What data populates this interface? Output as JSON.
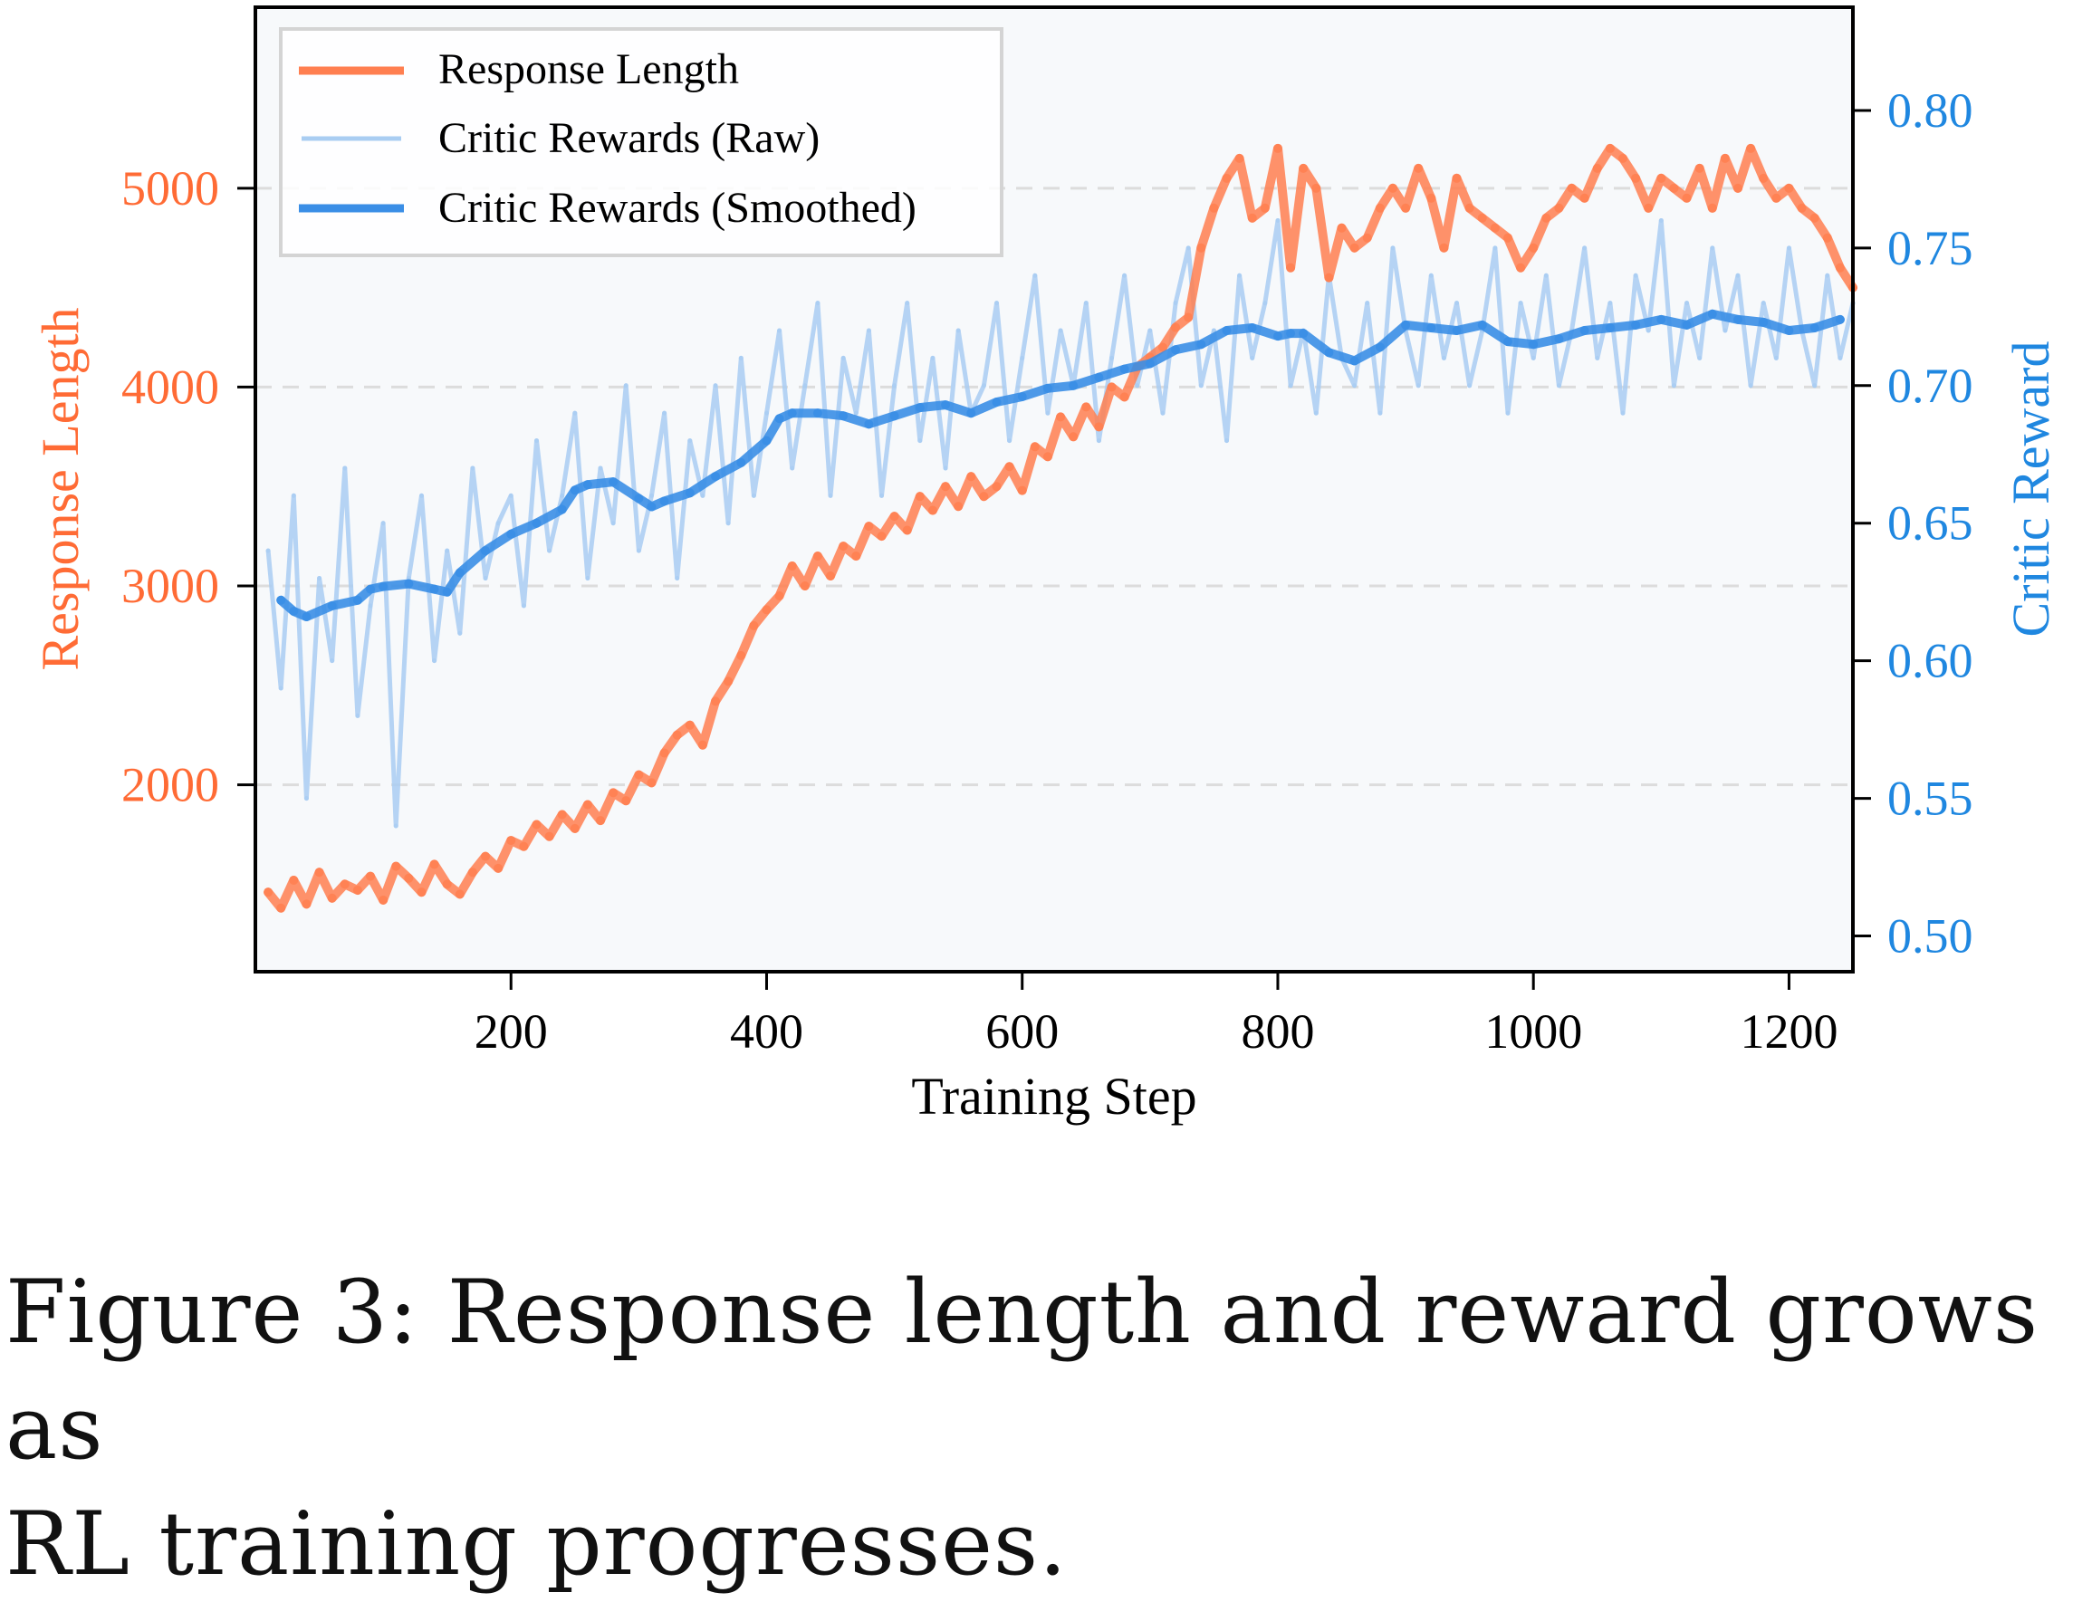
{
  "chart_data": {
    "type": "line",
    "title": "",
    "xlabel": "Training Step",
    "ylabel_left": "Response Length",
    "ylabel_right": "Critic Reward",
    "xlim": [
      0,
      1250
    ],
    "ylim_left": [
      1060,
      5910
    ],
    "ylim_right": [
      0.487,
      0.8375
    ],
    "xticks": [
      200,
      400,
      600,
      800,
      1000,
      1200
    ],
    "xtick_labels": [
      "200",
      "400",
      "600",
      "800",
      "1000",
      "1200"
    ],
    "yticks_left": [
      2000,
      3000,
      4000,
      5000
    ],
    "ytick_labels_left": [
      "2000",
      "3000",
      "4000",
      "5000"
    ],
    "yticks_right": [
      0.5,
      0.55,
      0.6,
      0.65,
      0.7,
      0.75,
      0.8
    ],
    "ytick_labels_right": [
      "0.50",
      "0.55",
      "0.60",
      "0.65",
      "0.70",
      "0.75",
      "0.80"
    ],
    "grid": "horizontal dashed",
    "legend_position": "top-left",
    "colors": {
      "response_length": "#ff7f50",
      "left_axis": "#ff6b35",
      "raw": "#a9cdf2",
      "smoothed": "#3a8ee6",
      "right_axis": "#1f87e0",
      "background": "#f7f9fb"
    },
    "series": [
      {
        "name": "Response Length",
        "axis": "left",
        "x": [
          10,
          20,
          30,
          40,
          50,
          60,
          70,
          80,
          90,
          100,
          110,
          120,
          130,
          140,
          150,
          160,
          170,
          180,
          190,
          200,
          210,
          220,
          230,
          240,
          250,
          260,
          270,
          280,
          290,
          300,
          310,
          320,
          330,
          340,
          350,
          360,
          370,
          380,
          390,
          400,
          410,
          420,
          430,
          440,
          450,
          460,
          470,
          480,
          490,
          500,
          510,
          520,
          530,
          540,
          550,
          560,
          570,
          580,
          590,
          600,
          610,
          620,
          630,
          640,
          650,
          660,
          670,
          680,
          690,
          700,
          710,
          720,
          730,
          740,
          750,
          760,
          770,
          780,
          790,
          800,
          810,
          820,
          830,
          840,
          850,
          860,
          870,
          880,
          890,
          900,
          910,
          920,
          930,
          940,
          950,
          960,
          970,
          980,
          990,
          1000,
          1010,
          1020,
          1030,
          1040,
          1050,
          1060,
          1070,
          1080,
          1090,
          1100,
          1110,
          1120,
          1130,
          1140,
          1150,
          1160,
          1170,
          1180,
          1190,
          1200,
          1210,
          1220,
          1230,
          1240,
          1250
        ],
        "values": [
          1460,
          1380,
          1520,
          1400,
          1560,
          1430,
          1500,
          1470,
          1540,
          1420,
          1590,
          1530,
          1460,
          1600,
          1500,
          1450,
          1560,
          1640,
          1580,
          1720,
          1690,
          1800,
          1740,
          1850,
          1780,
          1900,
          1820,
          1960,
          1920,
          2050,
          2010,
          2160,
          2250,
          2300,
          2200,
          2420,
          2520,
          2650,
          2800,
          2880,
          2950,
          3100,
          3000,
          3150,
          3050,
          3200,
          3150,
          3300,
          3250,
          3350,
          3280,
          3450,
          3380,
          3500,
          3400,
          3550,
          3450,
          3500,
          3600,
          3480,
          3700,
          3650,
          3850,
          3750,
          3900,
          3800,
          4000,
          3950,
          4100,
          4150,
          4200,
          4300,
          4350,
          4700,
          4900,
          5050,
          5150,
          4850,
          4900,
          5200,
          4600,
          5100,
          5000,
          4550,
          4800,
          4700,
          4750,
          4900,
          5000,
          4900,
          5100,
          4950,
          4700,
          5050,
          4900,
          4850,
          4800,
          4750,
          4600,
          4700,
          4850,
          4900,
          5000,
          4950,
          5100,
          5200,
          5150,
          5050,
          4900,
          5050,
          5000,
          4950,
          5100,
          4900,
          5150,
          5000,
          5200,
          5050,
          4950,
          5000,
          4900,
          4850,
          4750,
          4600,
          4500
        ]
      },
      {
        "name": "Critic Rewards (Raw)",
        "axis": "right",
        "x": [
          10,
          20,
          30,
          40,
          50,
          60,
          70,
          80,
          90,
          100,
          110,
          120,
          130,
          140,
          150,
          160,
          170,
          180,
          190,
          200,
          210,
          220,
          230,
          240,
          250,
          260,
          270,
          280,
          290,
          300,
          310,
          320,
          330,
          340,
          350,
          360,
          370,
          380,
          390,
          400,
          410,
          420,
          430,
          440,
          450,
          460,
          470,
          480,
          490,
          500,
          510,
          520,
          530,
          540,
          550,
          560,
          570,
          580,
          590,
          600,
          610,
          620,
          630,
          640,
          650,
          660,
          670,
          680,
          690,
          700,
          710,
          720,
          730,
          740,
          750,
          760,
          770,
          780,
          790,
          800,
          810,
          820,
          830,
          840,
          850,
          860,
          870,
          880,
          890,
          900,
          910,
          920,
          930,
          940,
          950,
          960,
          970,
          980,
          990,
          1000,
          1010,
          1020,
          1030,
          1040,
          1050,
          1060,
          1070,
          1080,
          1090,
          1100,
          1110,
          1120,
          1130,
          1140,
          1150,
          1160,
          1170,
          1180,
          1190,
          1200,
          1210,
          1220,
          1230,
          1240,
          1250
        ],
        "values": [
          0.64,
          0.59,
          0.66,
          0.55,
          0.63,
          0.6,
          0.67,
          0.58,
          0.62,
          0.65,
          0.54,
          0.63,
          0.66,
          0.6,
          0.64,
          0.61,
          0.67,
          0.63,
          0.65,
          0.66,
          0.62,
          0.68,
          0.64,
          0.66,
          0.69,
          0.63,
          0.67,
          0.65,
          0.7,
          0.64,
          0.66,
          0.69,
          0.63,
          0.68,
          0.66,
          0.7,
          0.65,
          0.71,
          0.66,
          0.69,
          0.72,
          0.67,
          0.7,
          0.73,
          0.66,
          0.71,
          0.69,
          0.72,
          0.66,
          0.7,
          0.73,
          0.68,
          0.71,
          0.67,
          0.72,
          0.69,
          0.7,
          0.73,
          0.68,
          0.71,
          0.74,
          0.69,
          0.72,
          0.7,
          0.73,
          0.68,
          0.71,
          0.74,
          0.7,
          0.72,
          0.69,
          0.73,
          0.75,
          0.7,
          0.72,
          0.68,
          0.74,
          0.71,
          0.73,
          0.76,
          0.7,
          0.72,
          0.69,
          0.74,
          0.71,
          0.7,
          0.73,
          0.69,
          0.75,
          0.72,
          0.7,
          0.74,
          0.71,
          0.73,
          0.7,
          0.72,
          0.75,
          0.69,
          0.73,
          0.71,
          0.74,
          0.7,
          0.72,
          0.75,
          0.71,
          0.73,
          0.69,
          0.74,
          0.72,
          0.76,
          0.7,
          0.73,
          0.71,
          0.75,
          0.72,
          0.74,
          0.7,
          0.73,
          0.71,
          0.75,
          0.72,
          0.7,
          0.74,
          0.71,
          0.73
        ]
      },
      {
        "name": "Critic Rewards (Smoothed)",
        "axis": "right",
        "x": [
          20,
          30,
          40,
          60,
          80,
          90,
          100,
          120,
          140,
          150,
          160,
          180,
          200,
          220,
          240,
          250,
          260,
          280,
          300,
          310,
          320,
          340,
          360,
          380,
          400,
          410,
          420,
          440,
          460,
          480,
          500,
          520,
          540,
          560,
          580,
          600,
          620,
          640,
          660,
          680,
          700,
          720,
          740,
          760,
          780,
          800,
          810,
          820,
          840,
          860,
          880,
          900,
          920,
          940,
          960,
          980,
          1000,
          1020,
          1040,
          1060,
          1080,
          1100,
          1120,
          1140,
          1160,
          1180,
          1200,
          1220,
          1240
        ],
        "values": [
          0.622,
          0.618,
          0.616,
          0.62,
          0.622,
          0.626,
          0.627,
          0.628,
          0.626,
          0.625,
          0.632,
          0.64,
          0.646,
          0.65,
          0.655,
          0.662,
          0.664,
          0.665,
          0.659,
          0.656,
          0.658,
          0.661,
          0.667,
          0.672,
          0.68,
          0.688,
          0.69,
          0.69,
          0.689,
          0.686,
          0.689,
          0.692,
          0.693,
          0.69,
          0.694,
          0.696,
          0.699,
          0.7,
          0.703,
          0.706,
          0.708,
          0.713,
          0.715,
          0.72,
          0.721,
          0.718,
          0.719,
          0.719,
          0.712,
          0.709,
          0.714,
          0.722,
          0.721,
          0.72,
          0.722,
          0.716,
          0.715,
          0.717,
          0.72,
          0.721,
          0.722,
          0.724,
          0.722,
          0.726,
          0.724,
          0.723,
          0.72,
          0.721,
          0.724
        ]
      }
    ]
  },
  "caption": {
    "line1": "Figure 3: Response length and reward grows as",
    "line2": "RL training progresses."
  }
}
